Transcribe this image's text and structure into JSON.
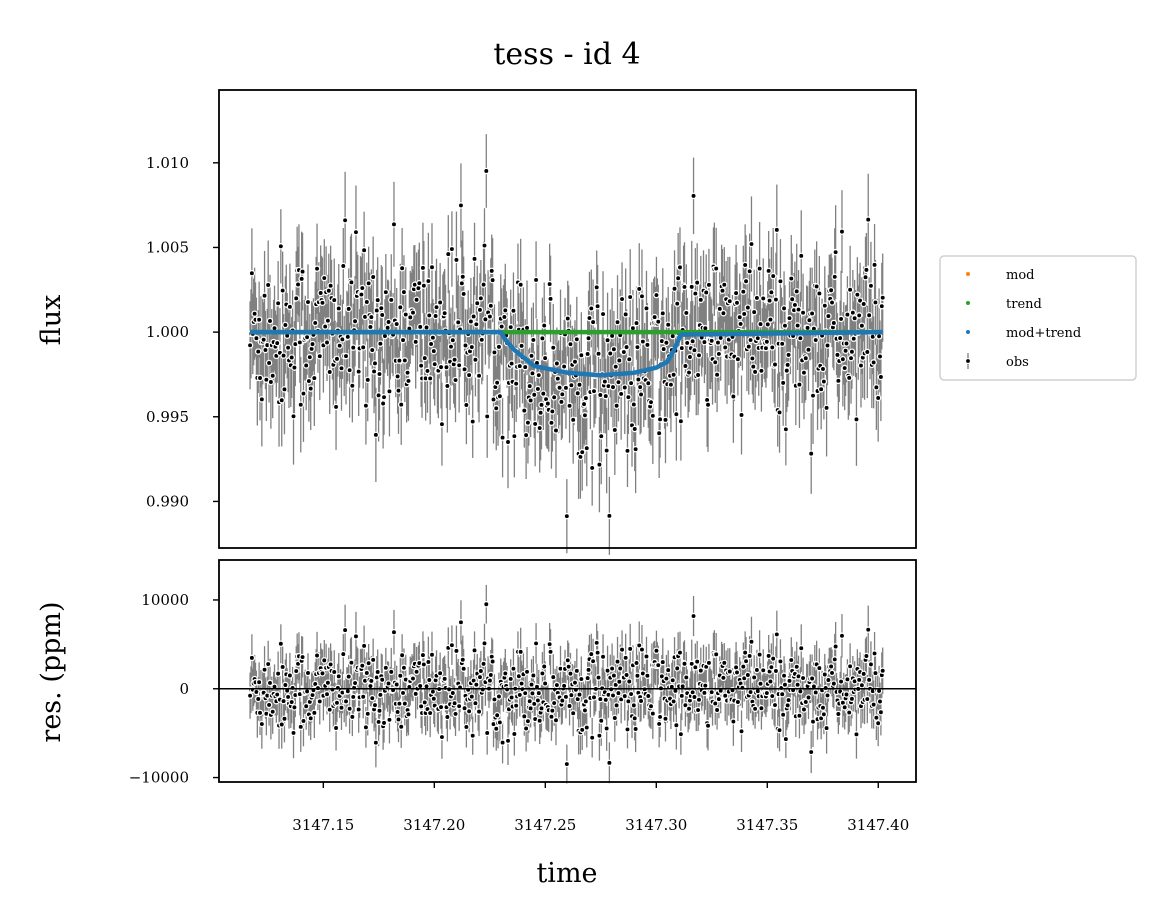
{
  "chart_data": [
    {
      "type": "scatter",
      "panel": "main",
      "title": "tess - id 4",
      "xlabel": "",
      "ylabel": "flux",
      "xlim": [
        3147.103,
        3147.417
      ],
      "ylim": [
        0.98725,
        1.0143
      ],
      "yticks": [
        0.99,
        0.995,
        1.0,
        1.005,
        1.01
      ],
      "ytick_labels": [
        "0.990",
        "0.995",
        "1.000",
        "1.005",
        "1.010"
      ],
      "legend": {
        "placement": "outside-right",
        "entries": [
          "mod",
          "trend",
          "mod+trend",
          "obs"
        ]
      },
      "series": [
        {
          "name": "mod",
          "color": "#ff7f0e",
          "kind": "points"
        },
        {
          "name": "trend",
          "color": "#2ca02c",
          "kind": "line",
          "x": [
            3147.117,
            3147.402
          ],
          "y": [
            1.0,
            1.0
          ]
        },
        {
          "name": "mod+trend",
          "color": "#1f77b4",
          "kind": "line",
          "x": [
            3147.117,
            3147.23,
            3147.232,
            3147.236,
            3147.245,
            3147.26,
            3147.275,
            3147.29,
            3147.3,
            3147.305,
            3147.308,
            3147.311,
            3147.402
          ],
          "y": [
            1.0,
            1.0,
            0.99955,
            0.99895,
            0.998,
            0.9976,
            0.99745,
            0.9976,
            0.9979,
            0.99825,
            0.99895,
            0.99985,
            1.0
          ]
        },
        {
          "name": "obs",
          "color": "#000000",
          "errcolor": "#808080",
          "kind": "errorbar",
          "x_range": [
            3147.117,
            3147.402
          ],
          "n_points": 700,
          "typical_error": 0.0025,
          "baseline": 1.0,
          "scatter": 0.0025
        }
      ]
    },
    {
      "type": "scatter",
      "panel": "residuals",
      "xlabel": "time",
      "ylabel": "res. (ppm)",
      "xlim": [
        3147.103,
        3147.417
      ],
      "ylim": [
        -10500,
        14500
      ],
      "xticks": [
        3147.15,
        3147.2,
        3147.25,
        3147.3,
        3147.35,
        3147.4
      ],
      "xtick_labels": [
        "3147.15",
        "3147.20",
        "3147.25",
        "3147.30",
        "3147.35",
        "3147.40"
      ],
      "yticks": [
        -10000,
        0,
        10000
      ],
      "ytick_labels": [
        "−10000",
        "0",
        "10000"
      ],
      "zero_line": 0,
      "series": [
        {
          "name": "res",
          "color": "#000000",
          "errcolor": "#808080",
          "kind": "errorbar",
          "x_range": [
            3147.117,
            3147.402
          ],
          "n_points": 700,
          "typical_error": 2500,
          "baseline": 0,
          "scatter": 2500
        }
      ]
    }
  ]
}
